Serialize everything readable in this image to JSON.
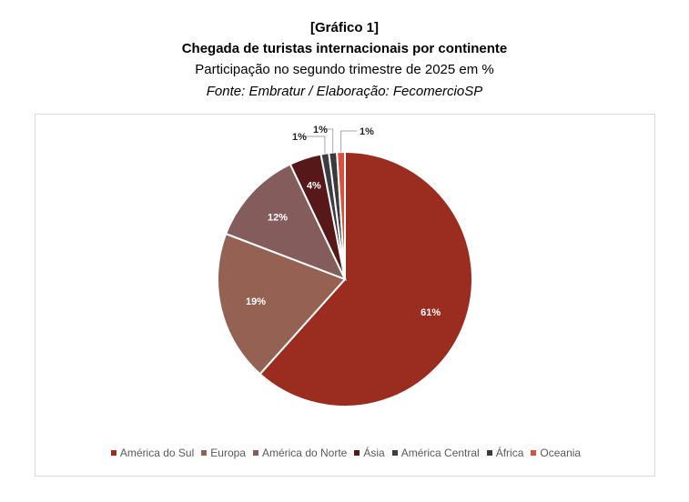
{
  "header": {
    "label": "[Gráfico 1]",
    "title": "Chegada de turistas internacionais por continente",
    "subtitle": "Participação no segundo trimestre de 2025 em %",
    "source": "Fonte: Embratur / Elaboração: FecomercioSP"
  },
  "chart_data": {
    "type": "pie",
    "title": "Chegada de turistas internacionais por continente",
    "subtitle": "Participação no segundo trimestre de 2025 em %",
    "legend_position": "bottom",
    "unit": "%",
    "slices": [
      {
        "name": "América do Sul",
        "value": 61,
        "label": "61%",
        "color": "#9b2d20"
      },
      {
        "name": "Europa",
        "value": 19,
        "label": "19%",
        "color": "#946152"
      },
      {
        "name": "América do Norte",
        "value": 12,
        "label": "12%",
        "color": "#845c5c"
      },
      {
        "name": "Ásia",
        "value": 4,
        "label": "4%",
        "color": "#561818"
      },
      {
        "name": "América Central",
        "value": 1,
        "label": "1%",
        "color": "#3c3c42"
      },
      {
        "name": "África",
        "value": 1,
        "label": "1%",
        "color": "#3a3a3a"
      },
      {
        "name": "Oceania",
        "value": 1,
        "label": "1%",
        "color": "#d9503f"
      }
    ]
  }
}
